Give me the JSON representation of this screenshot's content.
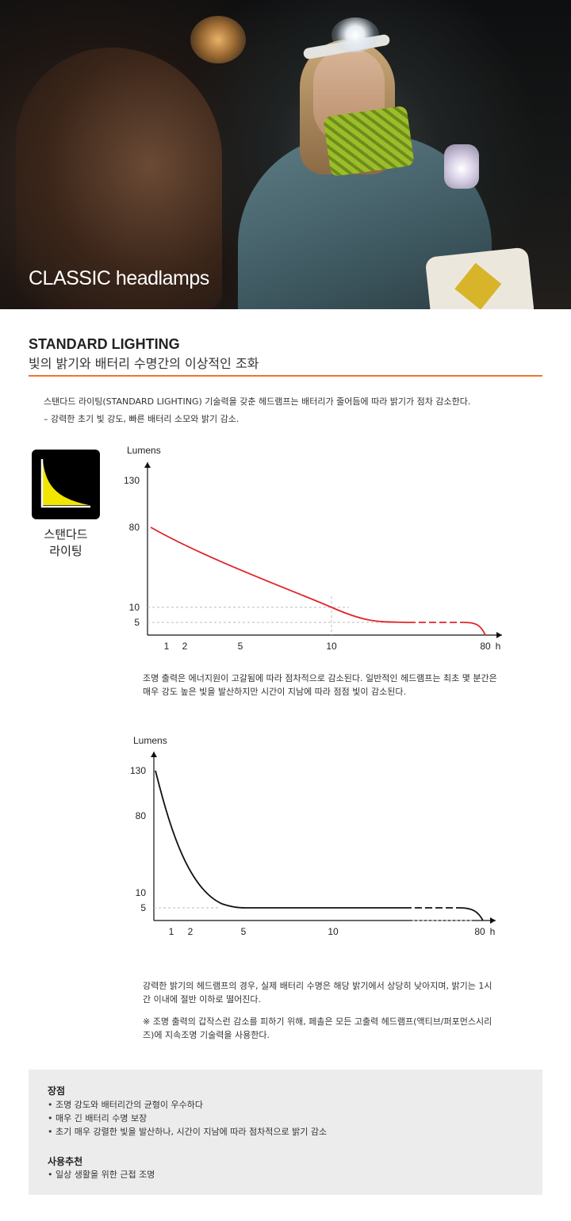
{
  "hero": {
    "title": "CLASSIC headlamps"
  },
  "section": {
    "title": "STANDARD LIGHTING",
    "subtitle": "빛의 밝기와 배터리 수명간의 이상적인 조화",
    "accent_color": "#e8782e"
  },
  "intro": {
    "line1": "스탠다드 라이팅(STANDARD LIGHTING) 기술력을 갖춘 헤드램프는 배터리가 줄어듬에 따라 밝기가 점차 감소한다.",
    "line2": "– 강력한 초기 빛 강도, 빠른 배터리 소모와 밝기 감소."
  },
  "badge": {
    "line1": "스탠다드",
    "line2": "라이팅",
    "fill_color": "#f2e600"
  },
  "chart_data": [
    {
      "type": "line",
      "ylabel": "Lumens",
      "xlabel": "h",
      "y_ticks": [
        130,
        80,
        10,
        5
      ],
      "x_ticks": [
        "1",
        "2",
        "5",
        "10",
        "80"
      ],
      "series": [
        {
          "color": "#e0252b",
          "x": [
            0,
            1,
            2,
            5,
            10,
            80
          ],
          "y": [
            80,
            70,
            60,
            38,
            10,
            0
          ]
        }
      ],
      "reference_lines": [
        {
          "x": 10,
          "y": 10
        }
      ]
    },
    {
      "type": "line",
      "ylabel": "Lumens",
      "xlabel": "h",
      "y_ticks": [
        130,
        80,
        10,
        5
      ],
      "x_ticks": [
        "1",
        "2",
        "5",
        "10",
        "80"
      ],
      "series": [
        {
          "color": "#111111",
          "x": [
            0,
            1,
            2,
            5,
            10,
            80
          ],
          "y": [
            130,
            80,
            30,
            5,
            5,
            0
          ]
        }
      ],
      "reference_lines": [
        {
          "y": 5
        }
      ]
    }
  ],
  "captions": {
    "chart1": {
      "line1": "조명 출력은 에너지원이 고갈됨에 따라 점차적으로 감소된다. 일반적인 헤드램프는 최초 몇 분간은",
      "line2": "매우 강도 높은 빛을 발산하지만 시간이 지남에 따라 점점 빛이 감소된다."
    },
    "chart2": {
      "line1": "강력한 밝기의 헤드램프의 경우, 실제 배터리 수명은 해당 밝기에서 상당히 낮아지며, 밝기는 1시",
      "line2": "간 이내에 절반 이하로 떨어진다.",
      "note1": "※ 조명 출력의 갑작스런 감소를 피하기 위해, 페촐은 모든 고출력 헤드램프(액티브/퍼포먼스시리",
      "note2": "즈)에 지속조명 기술력을 사용한다."
    }
  },
  "pros": {
    "title": "장점",
    "items": [
      "조명 강도와 배터리간의 균형이 우수하다",
      "매우 긴 배터리 수명 보장",
      "초기 매우 강렬한 빛을 발산하나, 시간이 지남에 따라 점차적으로 밝기 감소"
    ]
  },
  "recommend": {
    "title": "사용추천",
    "items": [
      "일상 생활을 위한 근접 조명"
    ]
  }
}
